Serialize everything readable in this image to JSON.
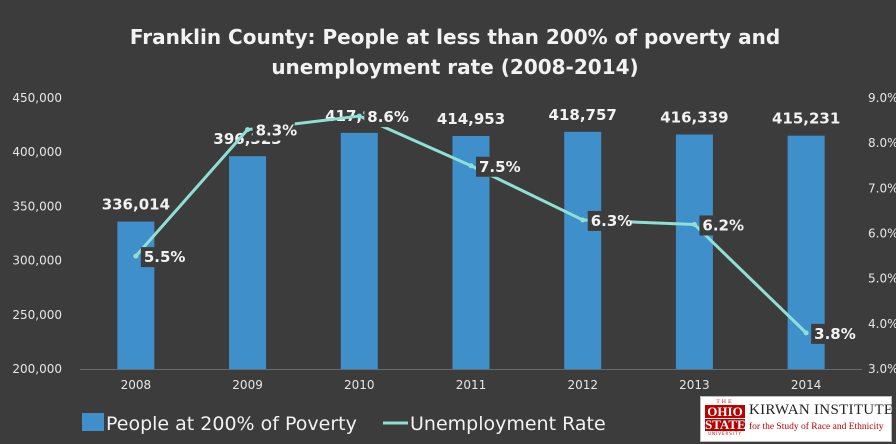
{
  "chart_data": {
    "type": "bar",
    "title_line1": "Franklin County: People at less than 200% of poverty and",
    "title_line2": "unemployment rate (2008-2014)",
    "categories": [
      "2008",
      "2009",
      "2010",
      "2011",
      "2012",
      "2013",
      "2014"
    ],
    "series": [
      {
        "name": "People at 200% of Poverty",
        "type": "bar",
        "axis": "left",
        "values": [
          336014,
          396323,
          417851,
          414953,
          418757,
          416339,
          415231
        ],
        "labels": [
          "336,014",
          "396,323",
          "417,851",
          "414,953",
          "418,757",
          "416,339",
          "415,231"
        ]
      },
      {
        "name": "Unemployment Rate",
        "type": "line",
        "axis": "right",
        "values": [
          5.5,
          8.3,
          8.6,
          7.5,
          6.3,
          6.2,
          3.8
        ],
        "labels": [
          "5.5%",
          "8.3%",
          "8.6%",
          "7.5%",
          "6.3%",
          "6.2%",
          "3.8%"
        ]
      }
    ],
    "y_left": {
      "min": 200000,
      "max": 450000,
      "ticks": [
        200000,
        250000,
        300000,
        350000,
        400000,
        450000
      ],
      "tick_labels": [
        "200,000",
        "250,000",
        "300,000",
        "350,000",
        "400,000",
        "450,000"
      ]
    },
    "y_right": {
      "min": 3.0,
      "max": 9.0,
      "ticks": [
        3,
        4,
        5,
        6,
        7,
        8,
        9
      ],
      "tick_labels": [
        "3.0%",
        "4.0%",
        "5.0%",
        "6.0%",
        "7.0%",
        "8.0%",
        "9.0%"
      ]
    },
    "grid": false,
    "legend_position": "bottom-left",
    "colors": {
      "background": "#3c3c3c",
      "bar": "#3f8fcb",
      "line": "#8fe0d4",
      "text": "#f2f2f2",
      "axis_text": "#e6e6e6"
    }
  },
  "logo": {
    "osu_the": "THE",
    "osu_ohio": "OHIO",
    "osu_state": "STATE",
    "osu_univ": "UNIVERSITY",
    "title": "KIRWAN INSTITUTE",
    "subtitle": "for the Study of Race and Ethnicity"
  }
}
